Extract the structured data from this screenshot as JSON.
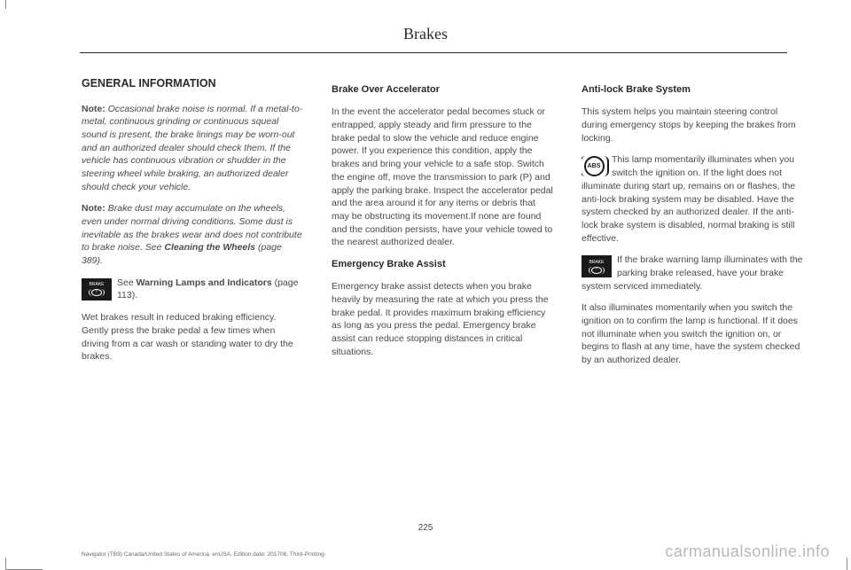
{
  "page": {
    "title": "Brakes",
    "number": "225"
  },
  "col1": {
    "heading": "GENERAL INFORMATION",
    "note1_label": "Note:",
    "note1_text": " Occasional brake noise is normal.  If a metal-to-metal, continuous grinding or continuous squeal sound is present, the brake linings may be worn-out and an authorized dealer should check them.  If the vehicle has continuous vibration or shudder in the steering wheel while braking, an authorized dealer should check your vehicle.",
    "note2_label": "Note:",
    "note2_text_a": " Brake dust may accumulate on the wheels, even under normal driving conditions. Some dust is inevitable as the brakes wear and does not contribute to brake noise.  See ",
    "note2_bold": "Cleaning the Wheels",
    "note2_text_b": " (page 389).",
    "icon_text_a": "See ",
    "icon_bold": "Warning Lamps and Indicators",
    "icon_text_b": " (page 113).",
    "wet": "Wet brakes result in reduced braking efficiency.  Gently press the brake pedal a few times when driving from a car wash or standing water to dry the brakes."
  },
  "col2": {
    "h_boa": "Brake Over Accelerator",
    "boa_text": "In the event the accelerator pedal becomes stuck or entrapped, apply steady and firm pressure to the brake pedal to slow the vehicle and reduce engine power.  If you experience this condition, apply the brakes and bring your vehicle to a safe stop.  Switch the engine off, move the transmission to park (P) and apply the parking brake. Inspect the accelerator pedal and the area around it for any items or debris that may be obstructing its movement.If none are found and the condition persists, have your vehicle towed to the nearest authorized dealer.",
    "h_eba": "Emergency Brake Assist",
    "eba_text": "Emergency brake assist detects when you brake heavily by measuring the rate at which you press the brake pedal.  It provides maximum braking efficiency as long as you press the pedal.  Emergency brake assist can reduce stopping distances in critical situations."
  },
  "col3": {
    "h_abs": "Anti-lock Brake System",
    "abs_intro": "This system helps you maintain steering control during emergency stops by keeping the brakes from locking.",
    "abs_icon_text": "This lamp momentarily illuminates when you switch the ignition on. If the light does not illuminate during start up, remains on or flashes, the anti-lock braking system may be disabled. Have the system checked by an authorized dealer. If the anti-lock brake system is disabled, normal braking is still effective.",
    "brake_icon_text": "If the brake warning lamp illuminates with the parking brake released, have your brake system serviced immediately.",
    "final": "It also illuminates momentarily when you switch the ignition on to confirm the lamp is functional. If it does not illuminate when you switch the ignition on, or begins to flash at any time, have the system checked by an authorized dealer."
  },
  "footer": {
    "left": "Navigator (TB9) Canada/United States of America, enUSA, Edition date: 201708, Third-Printing-",
    "right": "carmanualsonline.info"
  },
  "icons": {
    "brake_label": "BRAKE",
    "abs_label": "ABS"
  }
}
